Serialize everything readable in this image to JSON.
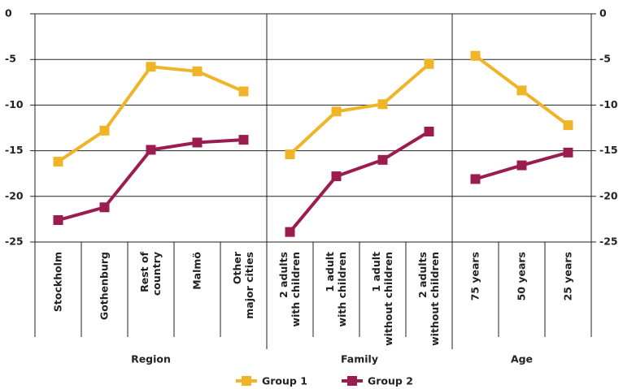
{
  "chart_data": {
    "type": "line",
    "ylim": [
      -25,
      0
    ],
    "yticks": [
      0,
      -5,
      -10,
      -15,
      -20,
      -25
    ],
    "grid": true,
    "groups": [
      {
        "name": "Region",
        "categories": [
          "Stockholm",
          "Gothenburg",
          "Rest of\ncountry",
          "Malmö",
          "Other\nmajor cities"
        ]
      },
      {
        "name": "Family",
        "categories": [
          "2 adults\nwith children",
          "1 adult\nwith children",
          "1 adult\nwithout children",
          "2 adults\nwithout children"
        ]
      },
      {
        "name": "Age",
        "categories": [
          "75 years",
          "50 years",
          "25 years"
        ]
      }
    ],
    "series": [
      {
        "name": "Group 1",
        "color": "#f0b429",
        "values": [
          [
            -16.2,
            -12.8,
            -5.8,
            -6.3,
            -8.5
          ],
          [
            -15.4,
            -10.7,
            -9.9,
            -5.5
          ],
          [
            -4.6,
            -8.4,
            -12.2
          ]
        ]
      },
      {
        "name": "Group 2",
        "color": "#9b1c4f",
        "values": [
          [
            -22.6,
            -21.2,
            -14.9,
            -14.1,
            -13.8
          ],
          [
            -23.9,
            -17.8,
            -16.0,
            -12.9
          ],
          [
            -18.1,
            -16.6,
            -15.2
          ]
        ]
      }
    ]
  }
}
